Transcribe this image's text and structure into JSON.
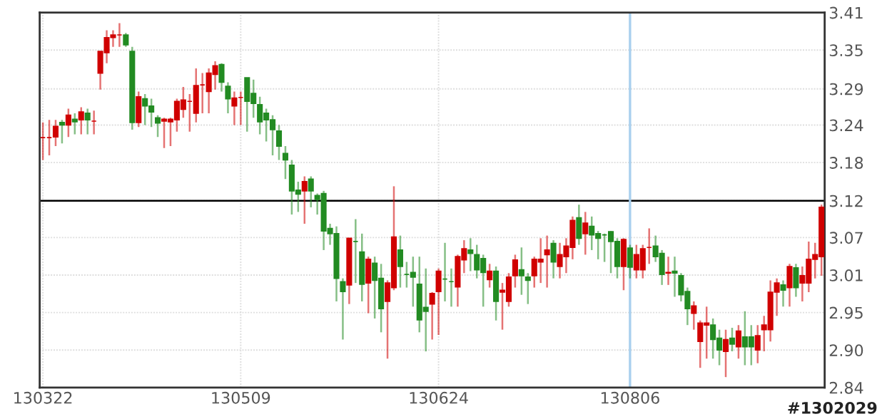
{
  "chart_data": {
    "type": "candlestick",
    "categories": [
      "130322",
      null,
      null,
      null,
      null,
      null,
      null,
      null,
      null,
      null,
      null,
      null,
      null,
      null,
      null,
      null,
      null,
      null,
      null,
      null,
      null,
      null,
      null,
      null,
      null,
      null,
      null,
      null,
      null,
      null,
      null,
      "130509",
      null,
      null,
      null,
      null,
      null,
      null,
      null,
      null,
      null,
      null,
      null,
      null,
      null,
      null,
      null,
      null,
      null,
      null,
      null,
      null,
      null,
      null,
      null,
      null,
      null,
      null,
      null,
      null,
      null,
      null,
      "130624",
      null,
      null,
      null,
      null,
      null,
      null,
      null,
      null,
      null,
      null,
      null,
      null,
      null,
      null,
      null,
      null,
      null,
      null,
      null,
      null,
      null,
      null,
      null,
      null,
      null,
      null,
      null,
      null,
      null,
      "130806",
      null,
      null,
      null,
      null,
      null,
      null,
      null,
      null,
      null,
      null,
      null,
      null,
      null,
      null,
      null,
      null,
      null,
      null,
      null,
      null,
      null,
      null,
      null,
      null,
      null,
      null,
      null,
      null,
      null,
      null
    ],
    "ohlc": [
      [
        3.22,
        3.243,
        3.186,
        3.22
      ],
      [
        3.22,
        3.247,
        3.193,
        3.22
      ],
      [
        3.221,
        3.247,
        3.207,
        3.237
      ],
      [
        3.243,
        3.247,
        3.211,
        3.239
      ],
      [
        3.239,
        3.264,
        3.221,
        3.254
      ],
      [
        3.248,
        3.257,
        3.225,
        3.244
      ],
      [
        3.247,
        3.266,
        3.225,
        3.259
      ],
      [
        3.257,
        3.264,
        3.225,
        3.247
      ],
      [
        3.245,
        3.261,
        3.225,
        3.245
      ],
      [
        3.318,
        3.351,
        3.293,
        3.351
      ],
      [
        3.349,
        3.383,
        3.333,
        3.372
      ],
      [
        3.372,
        3.383,
        3.358,
        3.376
      ],
      [
        3.376,
        3.394,
        3.358,
        3.376
      ],
      [
        3.376,
        3.379,
        3.358,
        3.361
      ],
      [
        3.351,
        3.358,
        3.232,
        3.243
      ],
      [
        3.243,
        3.29,
        3.236,
        3.282
      ],
      [
        3.279,
        3.286,
        3.239,
        3.268
      ],
      [
        3.268,
        3.279,
        3.236,
        3.259
      ],
      [
        3.25,
        3.254,
        3.221,
        3.242
      ],
      [
        3.245,
        3.25,
        3.204,
        3.248
      ],
      [
        3.244,
        3.25,
        3.207,
        3.248
      ],
      [
        3.247,
        3.279,
        3.229,
        3.275
      ],
      [
        3.263,
        3.297,
        3.25,
        3.277
      ],
      [
        3.275,
        3.286,
        3.229,
        3.275
      ],
      [
        3.257,
        3.325,
        3.243,
        3.299
      ],
      [
        3.3,
        3.318,
        3.257,
        3.3
      ],
      [
        3.29,
        3.325,
        3.257,
        3.318
      ],
      [
        3.316,
        3.336,
        3.293,
        3.329
      ],
      [
        3.331,
        3.333,
        3.29,
        3.304
      ],
      [
        3.298,
        3.304,
        3.257,
        3.279
      ],
      [
        3.268,
        3.29,
        3.239,
        3.28
      ],
      [
        3.281,
        3.29,
        3.239,
        3.281
      ],
      [
        3.311,
        3.311,
        3.229,
        3.275
      ],
      [
        3.287,
        3.308,
        3.25,
        3.272
      ],
      [
        3.27,
        3.282,
        3.225,
        3.244
      ],
      [
        3.257,
        3.264,
        3.214,
        3.247
      ],
      [
        3.247,
        3.254,
        3.193,
        3.232
      ],
      [
        3.23,
        3.239,
        3.186,
        3.207
      ],
      [
        3.196,
        3.207,
        3.157,
        3.186
      ],
      [
        3.178,
        3.186,
        3.103,
        3.139
      ],
      [
        3.14,
        3.153,
        3.107,
        3.134
      ],
      [
        3.139,
        3.161,
        3.089,
        3.153
      ],
      [
        3.157,
        3.161,
        3.114,
        3.139
      ],
      [
        3.132,
        3.135,
        3.103,
        3.126
      ],
      [
        3.135,
        3.139,
        3.049,
        3.078
      ],
      [
        3.082,
        3.089,
        3.057,
        3.074
      ],
      [
        3.074,
        3.085,
        2.971,
        3.006
      ],
      [
        3.001,
        3.006,
        2.913,
        2.986
      ],
      [
        2.996,
        3.067,
        2.967,
        3.067
      ],
      [
        3.062,
        3.096,
        2.999,
        3.062
      ],
      [
        3.046,
        3.074,
        2.971,
        2.997
      ],
      [
        2.999,
        3.039,
        2.953,
        3.035
      ],
      [
        3.029,
        3.039,
        2.945,
        3.003
      ],
      [
        3.006,
        3.028,
        2.924,
        2.96
      ],
      [
        2.971,
        3.003,
        2.884,
        2.999
      ],
      [
        2.992,
        3.146,
        2.988,
        3.069
      ],
      [
        3.049,
        3.071,
        2.992,
        3.024
      ],
      [
        3.012,
        3.031,
        2.992,
        3.012
      ],
      [
        3.015,
        3.039,
        2.963,
        3.008
      ],
      [
        2.997,
        3.039,
        2.924,
        2.943
      ],
      [
        2.962,
        3.021,
        2.895,
        2.956
      ],
      [
        2.967,
        2.985,
        2.913,
        2.983
      ],
      [
        2.986,
        3.021,
        2.92,
        3.017
      ],
      [
        3.005,
        3.06,
        2.971,
        3.005
      ],
      [
        3.001,
        3.021,
        2.963,
        3.001
      ],
      [
        2.993,
        3.042,
        2.963,
        3.039
      ],
      [
        3.034,
        3.064,
        3.014,
        3.051
      ],
      [
        3.049,
        3.067,
        3.017,
        3.044
      ],
      [
        3.042,
        3.057,
        3.006,
        3.019
      ],
      [
        3.036,
        3.042,
        2.963,
        3.015
      ],
      [
        3.004,
        3.028,
        2.992,
        3.017
      ],
      [
        3.017,
        3.024,
        2.942,
        2.971
      ],
      [
        2.985,
        2.999,
        2.928,
        2.988
      ],
      [
        2.971,
        3.014,
        2.963,
        3.008
      ],
      [
        3.01,
        3.042,
        2.992,
        3.034
      ],
      [
        3.019,
        3.053,
        2.981,
        3.01
      ],
      [
        3.008,
        3.014,
        2.967,
        3.003
      ],
      [
        3.01,
        3.039,
        2.992,
        3.035
      ],
      [
        3.031,
        3.067,
        2.999,
        3.035
      ],
      [
        3.042,
        3.071,
        2.992,
        3.049
      ],
      [
        3.059,
        3.064,
        3.006,
        3.031
      ],
      [
        3.024,
        3.06,
        3.006,
        3.042
      ],
      [
        3.039,
        3.067,
        3.014,
        3.055
      ],
      [
        3.053,
        3.1,
        3.035,
        3.094
      ],
      [
        3.098,
        3.118,
        3.057,
        3.067
      ],
      [
        3.074,
        3.107,
        3.042,
        3.09
      ],
      [
        3.085,
        3.1,
        3.049,
        3.072
      ],
      [
        3.074,
        3.078,
        3.035,
        3.067
      ],
      [
        3.072,
        3.074,
        3.031,
        3.072
      ],
      [
        3.077,
        3.078,
        3.014,
        3.062
      ],
      [
        3.062,
        3.067,
        3.006,
        3.024
      ],
      [
        3.024,
        3.067,
        2.988,
        3.065
      ],
      [
        3.052,
        3.057,
        3.006,
        3.023
      ],
      [
        3.019,
        3.057,
        3.006,
        3.042
      ],
      [
        3.019,
        3.057,
        3.006,
        3.051
      ],
      [
        3.053,
        3.082,
        3.028,
        3.053
      ],
      [
        3.055,
        3.071,
        3.031,
        3.039
      ],
      [
        3.044,
        3.049,
        2.996,
        3.012
      ],
      [
        3.014,
        3.039,
        2.996,
        3.015
      ],
      [
        3.017,
        3.039,
        2.978,
        3.014
      ],
      [
        3.01,
        3.014,
        2.971,
        2.981
      ],
      [
        2.986,
        2.992,
        2.935,
        2.96
      ],
      [
        2.953,
        2.971,
        2.928,
        2.964
      ],
      [
        2.91,
        2.942,
        2.87,
        2.938
      ],
      [
        2.935,
        2.963,
        2.884,
        2.938
      ],
      [
        2.935,
        2.945,
        2.884,
        2.913
      ],
      [
        2.915,
        2.928,
        2.874,
        2.897
      ],
      [
        2.895,
        2.928,
        2.856,
        2.913
      ],
      [
        2.915,
        2.931,
        2.895,
        2.906
      ],
      [
        2.902,
        2.935,
        2.884,
        2.926
      ],
      [
        2.917,
        2.956,
        2.874,
        2.902
      ],
      [
        2.917,
        2.935,
        2.874,
        2.902
      ],
      [
        2.897,
        2.935,
        2.877,
        2.919
      ],
      [
        2.928,
        2.949,
        2.895,
        2.935
      ],
      [
        2.928,
        3.003,
        2.91,
        2.985
      ],
      [
        2.985,
        3.006,
        2.949,
        2.999
      ],
      [
        2.996,
        3.003,
        2.963,
        2.988
      ],
      [
        2.992,
        3.028,
        2.963,
        3.024
      ],
      [
        3.022,
        3.028,
        2.978,
        2.992
      ],
      [
        2.999,
        3.024,
        2.971,
        3.01
      ],
      [
        2.999,
        3.062,
        2.985,
        3.035
      ],
      [
        3.035,
        3.06,
        3.006,
        3.042
      ],
      [
        3.039,
        3.118,
        3.01,
        3.114
      ]
    ],
    "colors": [
      "#d00000",
      "#d00000",
      "#d00000",
      "#228b22",
      "#d00000",
      "#228b22",
      "#d00000",
      "#228b22",
      "#d00000",
      "#d00000",
      "#d00000",
      "#d00000",
      "#d00000",
      "#228b22",
      "#228b22",
      "#d00000",
      "#228b22",
      "#228b22",
      "#228b22",
      "#d00000",
      "#d00000",
      "#d00000",
      "#d00000",
      "#d00000",
      "#d00000",
      "#d00000",
      "#d00000",
      "#d00000",
      "#228b22",
      "#228b22",
      "#d00000",
      "#d00000",
      "#228b22",
      "#228b22",
      "#228b22",
      "#228b22",
      "#228b22",
      "#228b22",
      "#228b22",
      "#228b22",
      "#228b22",
      "#d00000",
      "#228b22",
      "#228b22",
      "#228b22",
      "#228b22",
      "#228b22",
      "#228b22",
      "#d00000",
      "#228b22",
      "#228b22",
      "#d00000",
      "#228b22",
      "#228b22",
      "#d00000",
      "#d00000",
      "#228b22",
      "#228b22",
      "#228b22",
      "#228b22",
      "#228b22",
      "#d00000",
      "#d00000",
      "#228b22",
      "#228b22",
      "#d00000",
      "#d00000",
      "#228b22",
      "#228b22",
      "#228b22",
      "#d00000",
      "#228b22",
      "#d00000",
      "#d00000",
      "#d00000",
      "#228b22",
      "#228b22",
      "#d00000",
      "#d00000",
      "#d00000",
      "#228b22",
      "#d00000",
      "#d00000",
      "#d00000",
      "#228b22",
      "#d00000",
      "#228b22",
      "#228b22",
      "#228b22",
      "#228b22",
      "#228b22",
      "#d00000",
      "#228b22",
      "#d00000",
      "#d00000",
      "#d00000",
      "#228b22",
      "#228b22",
      "#d00000",
      "#228b22",
      "#228b22",
      "#228b22",
      "#d00000",
      "#d00000",
      "#d00000",
      "#228b22",
      "#228b22",
      "#d00000",
      "#228b22",
      "#d00000",
      "#228b22",
      "#228b22",
      "#d00000",
      "#d00000",
      "#d00000",
      "#d00000",
      "#228b22",
      "#d00000",
      "#228b22",
      "#d00000",
      "#d00000",
      "#d00000",
      "#d00000"
    ],
    "ylim": [
      2.84,
      3.41
    ],
    "yticks": [
      2.84,
      {
        "value": 2.897,
        "label": "2.90"
      },
      {
        "value": 2.954,
        "label": "2.95"
      },
      {
        "value": 3.011,
        "label": "3.01"
      },
      {
        "value": 3.068,
        "label": "3.07"
      },
      {
        "value": 3.124,
        "label": "3.12"
      },
      {
        "value": 3.182,
        "label": "3.18"
      },
      {
        "value": 3.239,
        "label": "3.24"
      },
      {
        "value": 3.294,
        "label": "3.29"
      },
      {
        "value": 3.353,
        "label": "3.35"
      },
      3.41
    ],
    "grid": true,
    "ref_lines": [
      {
        "axis": "y",
        "value": 3.124,
        "color": "#000000"
      },
      {
        "axis": "x",
        "value": "130806",
        "color": "#a8cfee"
      }
    ],
    "annotations": [
      "#1302029"
    ]
  }
}
